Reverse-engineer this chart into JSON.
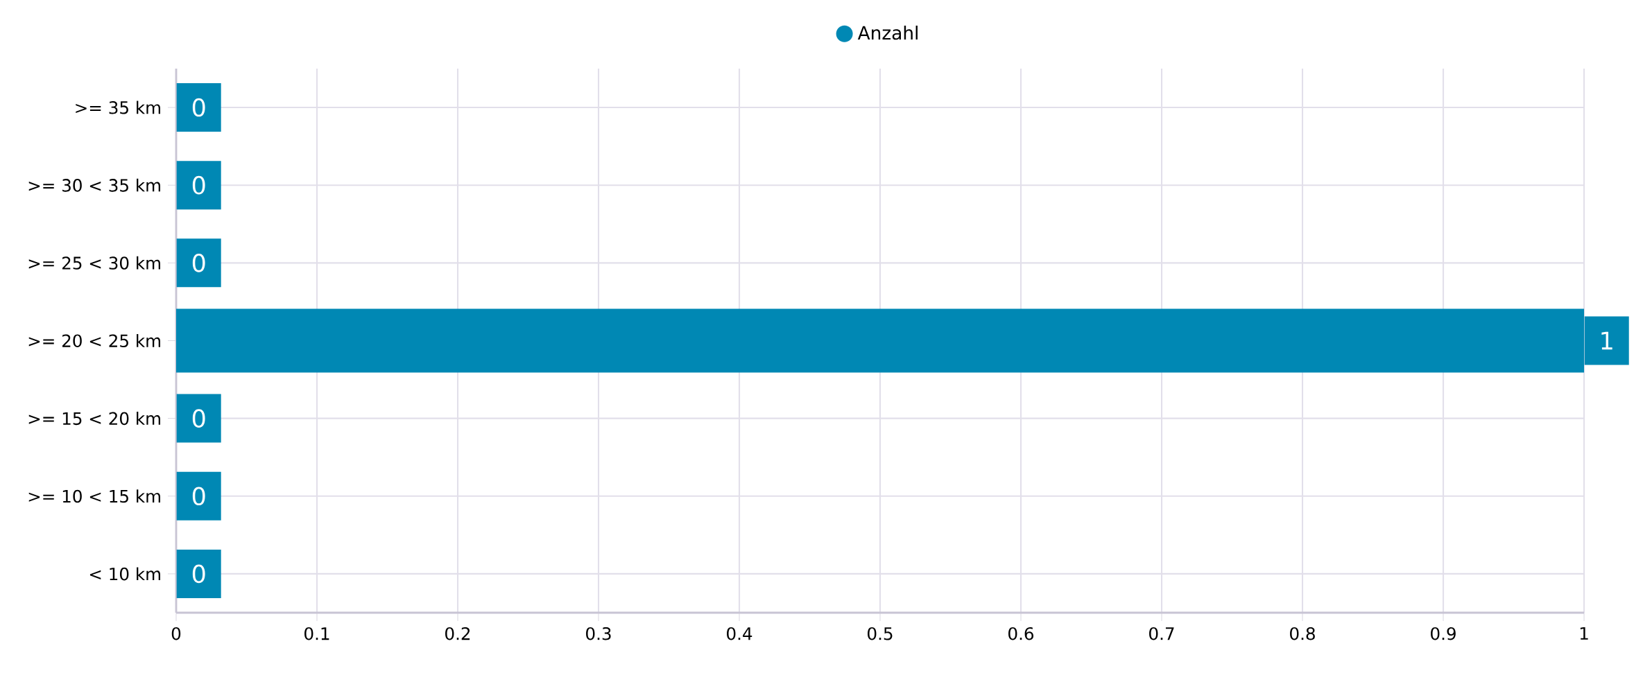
{
  "chart_data": {
    "type": "bar",
    "orientation": "horizontal",
    "categories": [
      ">= 35 km",
      ">= 30 < 35 km",
      ">= 25 < 30 km",
      ">= 20 < 25 km",
      ">= 15 < 20 km",
      ">= 10 < 15 km",
      "< 10 km"
    ],
    "series": [
      {
        "name": "Anzahl",
        "color": "#0088b4",
        "values": [
          0,
          0,
          0,
          1,
          0,
          0,
          0
        ]
      }
    ],
    "xlim": [
      0,
      1
    ],
    "xticks": [
      0,
      0.1,
      0.2,
      0.3,
      0.4,
      0.5,
      0.6,
      0.7,
      0.8,
      0.9,
      1
    ],
    "grid": true,
    "legend": "top",
    "marker": "circle",
    "data_labels": true
  }
}
